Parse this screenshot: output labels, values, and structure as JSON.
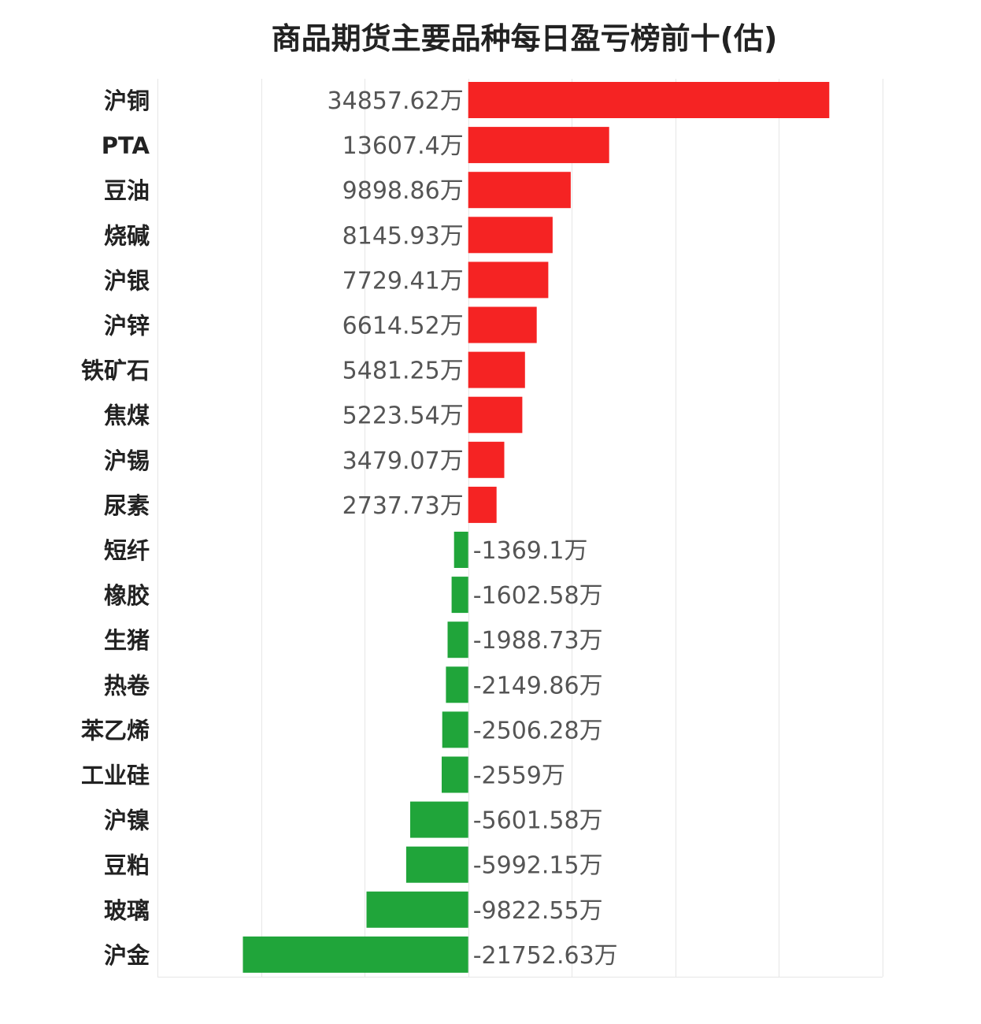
{
  "chart_data": {
    "type": "bar",
    "orientation": "horizontal",
    "title": "商品期货主要品种每日盈亏榜前十(估)",
    "unit": "万",
    "xlim": [
      -30000,
      40000
    ],
    "grid": true,
    "legend": "none",
    "colors": {
      "positive": "#f52323",
      "negative": "#20a53a"
    },
    "categories": [
      "沪铜",
      "PTA",
      "豆油",
      "烧碱",
      "沪银",
      "沪锌",
      "铁矿石",
      "焦煤",
      "沪锡",
      "尿素",
      "短纤",
      "橡胶",
      "生猪",
      "热卷",
      "苯乙烯",
      "工业硅",
      "沪镍",
      "豆粕",
      "玻璃",
      "沪金"
    ],
    "values": [
      34857.62,
      13607.4,
      9898.86,
      8145.93,
      7729.41,
      6614.52,
      5481.25,
      5223.54,
      3479.07,
      2737.73,
      -1369.1,
      -1602.58,
      -1988.73,
      -2149.86,
      -2506.28,
      -2559,
      -5601.58,
      -5992.15,
      -9822.55,
      -21752.63
    ],
    "labels": [
      "34857.62万",
      "13607.4万",
      "9898.86万",
      "8145.93万",
      "7729.41万",
      "6614.52万",
      "5481.25万",
      "5223.54万",
      "3479.07万",
      "2737.73万",
      "-1369.1万",
      "-1602.58万",
      "-1988.73万",
      "-2149.86万",
      "-2506.28万",
      "-2559万",
      "-5601.58万",
      "-5992.15万",
      "-9822.55万",
      "-21752.63万"
    ]
  }
}
